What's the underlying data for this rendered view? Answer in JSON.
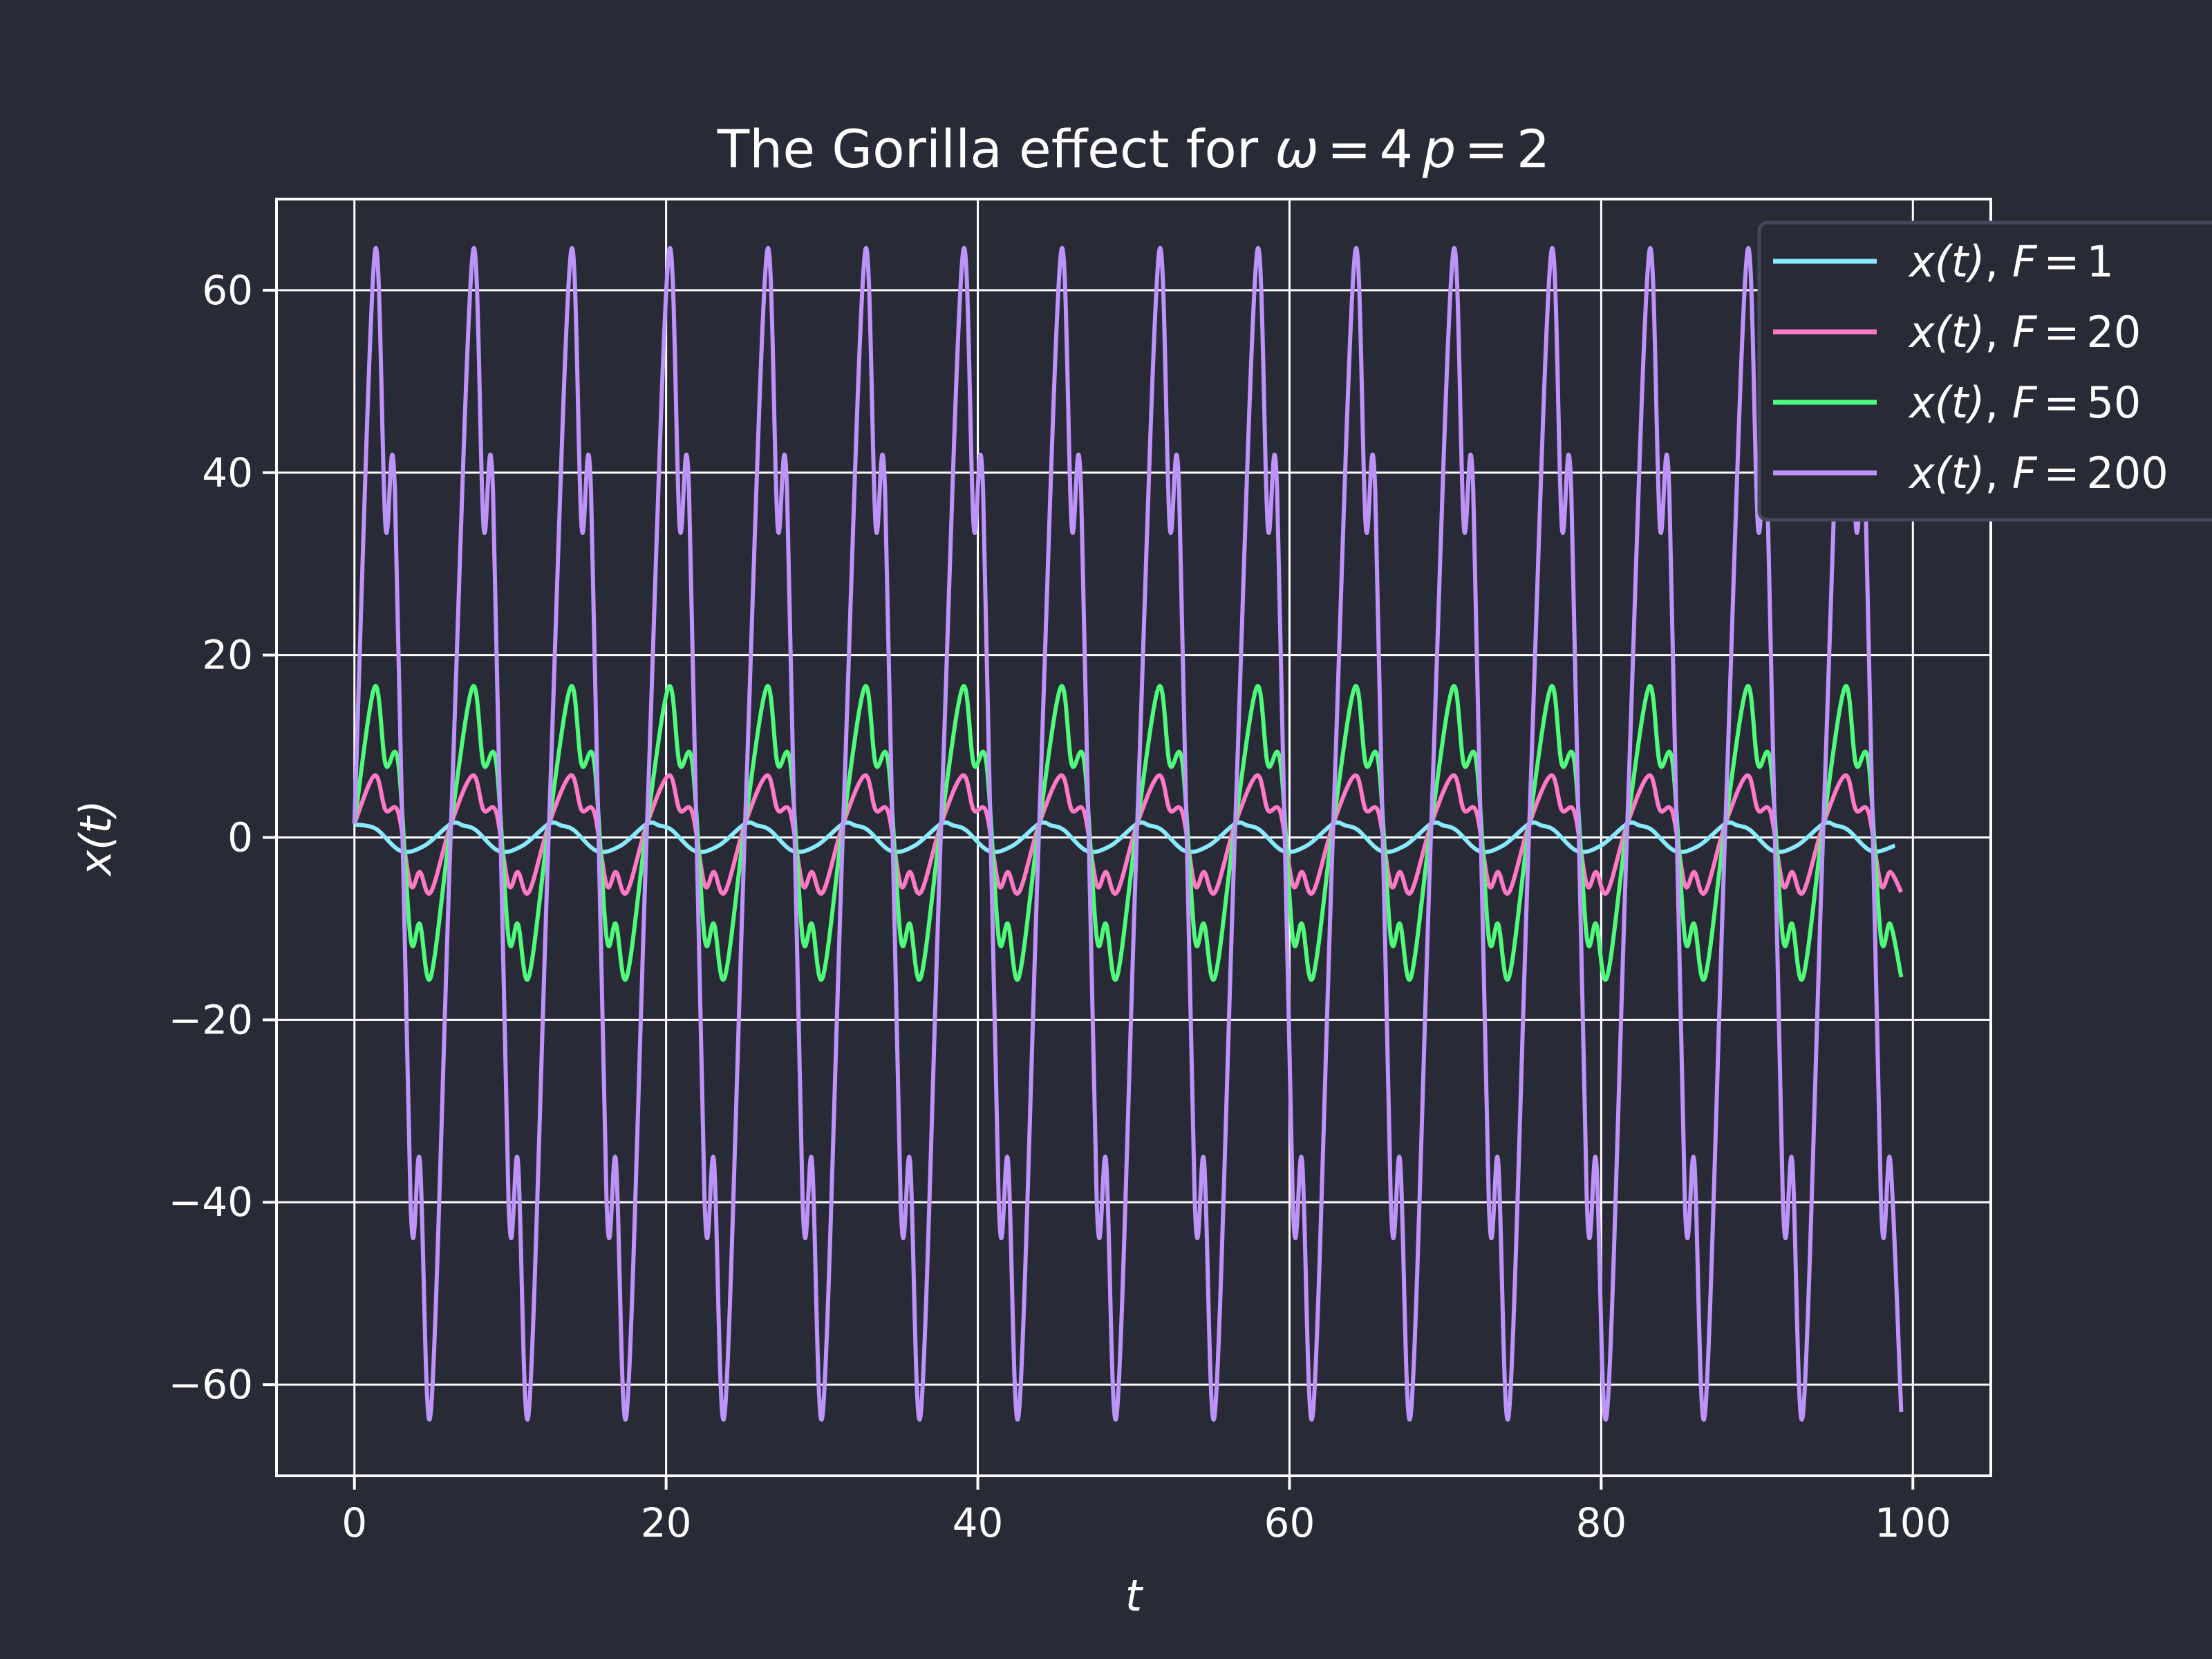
{
  "chart_data": {
    "type": "line",
    "title": {
      "prefix": "The Gorilla effect for ",
      "omega_symbol": "ω",
      "omega_value": "4",
      "p_symbol": "p",
      "p_value": "2",
      "equals": "="
    },
    "xlabel": "t",
    "ylabel": "x(t)",
    "xlim": [
      -5,
      105
    ],
    "ylim": [
      -70,
      70
    ],
    "xticks": [
      0,
      20,
      40,
      60,
      80,
      100
    ],
    "yticks": [
      -60,
      -40,
      -20,
      0,
      20,
      40,
      60
    ],
    "ytick_labels": [
      "−60",
      "−40",
      "−20",
      "0",
      "20",
      "40",
      "60"
    ],
    "grid": true,
    "legend_position": "top-right",
    "x_range": [
      0,
      100
    ],
    "series": [
      {
        "name": "x(t), F = 1",
        "var": "x(t)",
        "F": "1",
        "color": "#8be9fd",
        "samples": [
          [
            0,
            1.4
          ],
          [
            0.7,
            1.3
          ],
          [
            1.5,
            0.8
          ],
          [
            3,
            -1.5
          ],
          [
            4.5,
            -0.9
          ],
          [
            6.2,
            1.5
          ]
        ]
      },
      {
        "name": "x(t), F = 20",
        "var": "x(t)",
        "F": "20",
        "color": "#ff79c6",
        "samples": [
          [
            0,
            1.5
          ],
          [
            1.3,
            6.8
          ],
          [
            2,
            3
          ],
          [
            2.8,
            2.8
          ],
          [
            3.6,
            -5.2
          ],
          [
            4.2,
            -3.8
          ],
          [
            4.9,
            -6.0
          ],
          [
            6.2,
            1.5
          ]
        ]
      },
      {
        "name": "x(t), F = 50",
        "var": "x(t)",
        "F": "50",
        "color": "#50fa7b",
        "samples": [
          [
            0,
            1.5
          ],
          [
            1.3,
            16.5
          ],
          [
            2,
            8
          ],
          [
            2.8,
            8.3
          ],
          [
            3.6,
            -11
          ],
          [
            4.2,
            -9.5
          ],
          [
            4.9,
            -15.3
          ],
          [
            6.2,
            1.5
          ]
        ]
      },
      {
        "name": "x(t), F = 200",
        "var": "x(t)",
        "F": "200",
        "color": "#bd93f9",
        "samples": [
          [
            0,
            1.5
          ],
          [
            1.3,
            64
          ],
          [
            2,
            34
          ],
          [
            2.6,
            38
          ],
          [
            3.6,
            -40
          ],
          [
            4.2,
            -35.5
          ],
          [
            4.9,
            -63
          ],
          [
            6.2,
            1.5
          ]
        ]
      }
    ],
    "period": 6.29
  }
}
